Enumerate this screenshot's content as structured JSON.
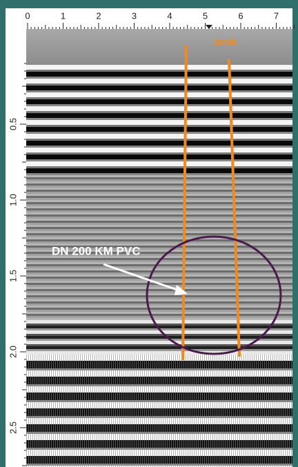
{
  "top_ruler": {
    "labels": [
      "0",
      "1",
      "2",
      "3",
      "4",
      "5",
      "6",
      "7"
    ]
  },
  "left_ruler": {
    "labels": [
      "0.5",
      "1.0",
      "1.5",
      "2.0",
      "2.5"
    ]
  },
  "annotations": {
    "trench_label": "árok",
    "pipe_label": "DN 200 KM PVC"
  }
}
